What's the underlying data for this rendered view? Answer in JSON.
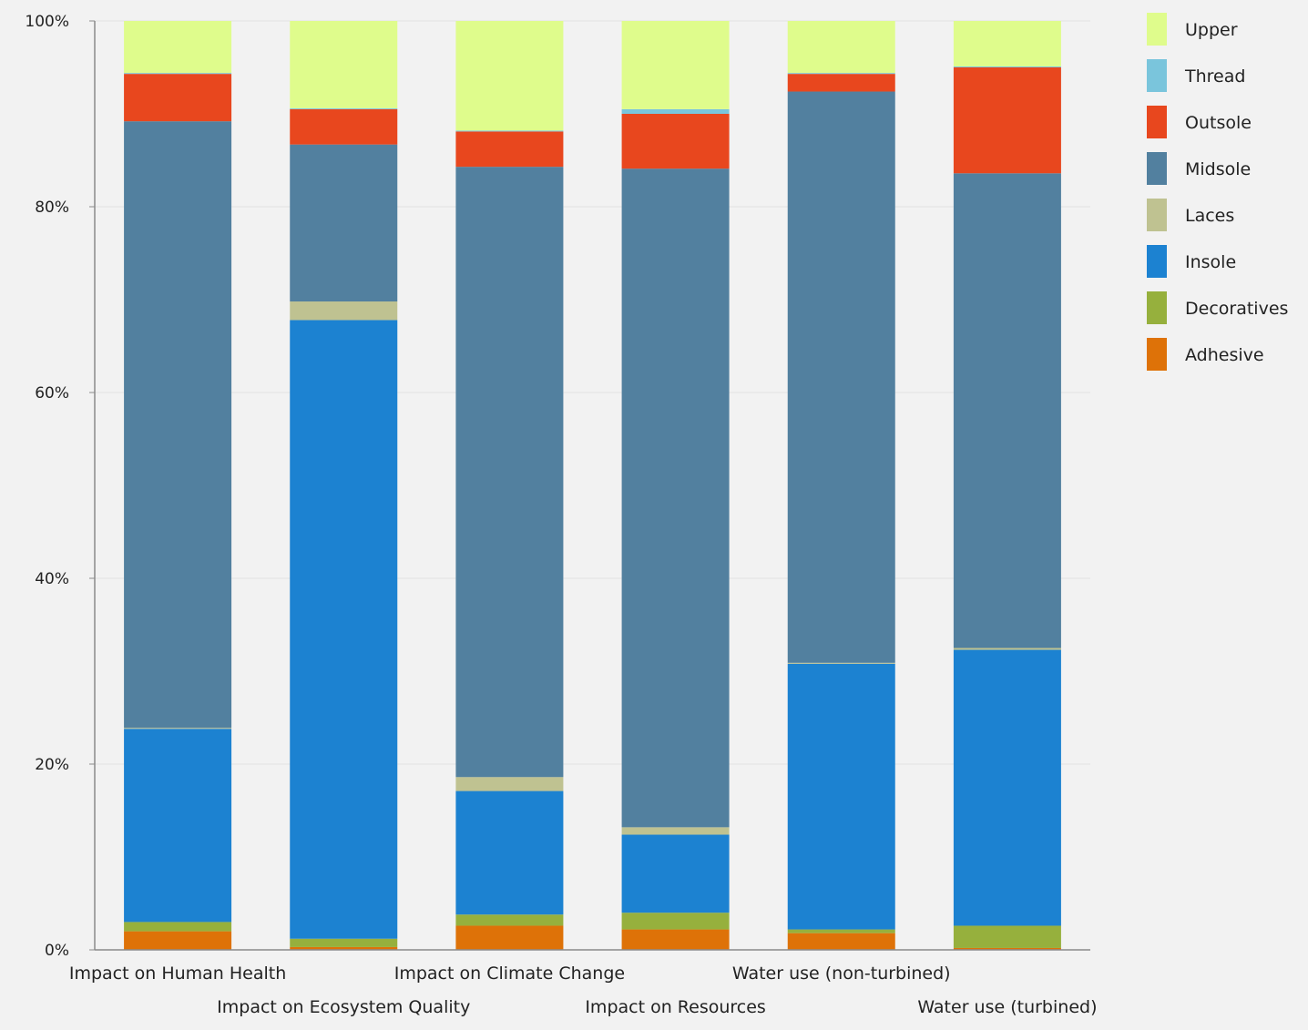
{
  "chart_data": {
    "type": "bar",
    "stacked": true,
    "normalized": true,
    "title": "",
    "xlabel": "",
    "ylabel": "",
    "ylim": [
      0,
      100
    ],
    "y_ticks": [
      0,
      20,
      40,
      60,
      80,
      100
    ],
    "y_tick_labels": [
      "0%",
      "20%",
      "40%",
      "60%",
      "80%",
      "100%"
    ],
    "grid": true,
    "legend_position": "right",
    "categories": [
      "Impact on Human Health",
      "Impact on Ecosystem Quality",
      "Impact on Climate Change",
      "Impact on Resources",
      "Water use (non-turbined)",
      "Water use (turbined)"
    ],
    "series": [
      {
        "name": "Adhesive",
        "color": "#de7208",
        "values": [
          2.0,
          0.3,
          2.6,
          2.2,
          1.8,
          0.2
        ]
      },
      {
        "name": "Decoratives",
        "color": "#96b03d",
        "values": [
          1.0,
          0.9,
          1.2,
          1.8,
          0.4,
          2.4
        ]
      },
      {
        "name": "Insole",
        "color": "#1c82d1",
        "values": [
          20.8,
          66.6,
          13.3,
          8.4,
          28.6,
          29.7
        ]
      },
      {
        "name": "Laces",
        "color": "#bfc291",
        "values": [
          0.1,
          2.0,
          1.5,
          0.8,
          0.1,
          0.2
        ]
      },
      {
        "name": "Midsole",
        "color": "#52809f",
        "values": [
          65.3,
          16.9,
          65.7,
          70.9,
          61.5,
          51.1
        ]
      },
      {
        "name": "Outsole",
        "color": "#e8471e",
        "values": [
          5.1,
          3.8,
          3.8,
          5.9,
          1.9,
          11.4
        ]
      },
      {
        "name": "Thread",
        "color": "#7ac5dc",
        "values": [
          0.1,
          0.1,
          0.1,
          0.5,
          0.1,
          0.1
        ]
      },
      {
        "name": "Upper",
        "color": "#dffc8c",
        "values": [
          5.6,
          9.4,
          11.8,
          9.5,
          5.6,
          4.9
        ]
      }
    ]
  }
}
